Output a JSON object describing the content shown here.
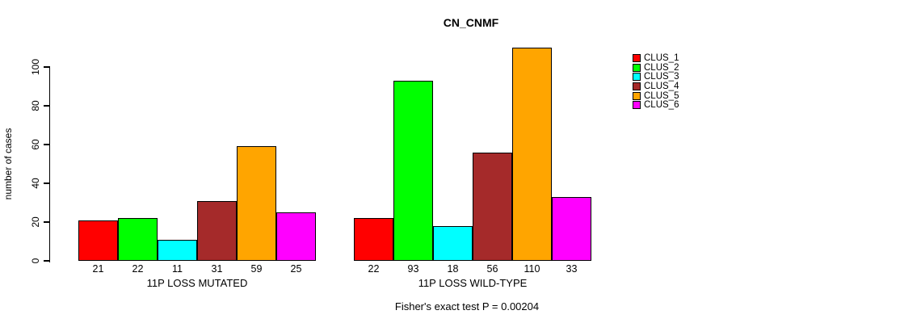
{
  "title": "CN_CNMF",
  "footer": "Fisher's exact test P = 0.00204",
  "chart_data": {
    "type": "bar",
    "title": "CN_CNMF",
    "xlabel": "",
    "ylabel": "number of cases",
    "ylim": [
      0,
      110
    ],
    "yticks": [
      0,
      20,
      40,
      60,
      80,
      100
    ],
    "grid": false,
    "legend_position": "right",
    "series_names": [
      "CLUS_1",
      "CLUS_2",
      "CLUS_3",
      "CLUS_4",
      "CLUS_5",
      "CLUS_6"
    ],
    "colors": [
      "#FF0000",
      "#00FF00",
      "#00FFFF",
      "#A52A2A",
      "#FFA500",
      "#FF00FF"
    ],
    "groups": [
      {
        "label": "11P LOSS MUTATED",
        "values": [
          21,
          22,
          11,
          31,
          59,
          25
        ]
      },
      {
        "label": "11P LOSS WILD-TYPE",
        "values": [
          22,
          93,
          18,
          56,
          110,
          33
        ]
      }
    ],
    "bar_value_labels_shown": true,
    "annotation": "Fisher's exact test P = 0.00204"
  }
}
